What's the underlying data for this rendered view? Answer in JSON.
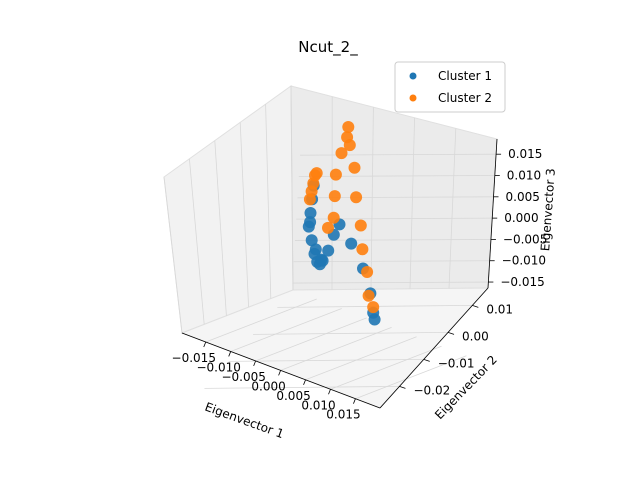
{
  "chart_data": {
    "type": "scatter",
    "projection": "3d",
    "title": "Ncut_2_",
    "xlabel": "Eigenvector 1",
    "ylabel": "Eigenvector 2",
    "zlabel": "Eigenvector 3",
    "xticks": [
      "−0.015",
      "−0.010",
      "−0.005",
      "0.000",
      "0.005",
      "0.010",
      "0.015"
    ],
    "yticks": [
      "−0.02",
      "−0.01",
      "0.00",
      "0.01"
    ],
    "zticks": [
      "−0.015",
      "−0.010",
      "−0.005",
      "0.000",
      "0.005",
      "0.010",
      "0.015"
    ],
    "grid": true,
    "legend_position": "upper-right",
    "series": [
      {
        "name": "Cluster 1",
        "color": "#1f77b4",
        "points": [
          [
            -0.015,
            0.011,
            0.002
          ],
          [
            -0.013,
            0.01,
            0.0
          ],
          [
            -0.011,
            0.009,
            -0.002
          ],
          [
            -0.009,
            0.008,
            -0.004
          ],
          [
            -0.007,
            0.006,
            -0.006
          ],
          [
            -0.005,
            0.004,
            -0.008
          ],
          [
            -0.003,
            0.002,
            -0.009
          ],
          [
            -0.001,
            0.0,
            -0.009
          ],
          [
            0.001,
            -0.002,
            -0.008
          ],
          [
            0.002,
            -0.004,
            -0.006
          ],
          [
            0.003,
            -0.006,
            -0.003
          ],
          [
            0.004,
            -0.008,
            -0.001
          ],
          [
            0.006,
            -0.012,
            -0.004
          ],
          [
            0.008,
            -0.016,
            -0.008
          ],
          [
            0.01,
            -0.019,
            -0.012
          ],
          [
            0.012,
            -0.021,
            -0.015
          ],
          [
            0.013,
            -0.022,
            -0.016
          ],
          [
            -0.008,
            0.007,
            -0.003
          ],
          [
            -0.004,
            0.003,
            -0.007
          ],
          [
            0.0,
            -0.001,
            -0.008
          ]
        ]
      },
      {
        "name": "Cluster 2",
        "color": "#ff7f0e",
        "points": [
          [
            -0.016,
            0.011,
            0.004
          ],
          [
            -0.014,
            0.01,
            0.004
          ],
          [
            -0.012,
            0.009,
            0.003
          ],
          [
            -0.01,
            0.008,
            0.002
          ],
          [
            -0.008,
            0.007,
            0.001
          ],
          [
            0.003,
            -0.006,
            0.0
          ],
          [
            0.004,
            -0.007,
            0.004
          ],
          [
            0.005,
            -0.008,
            0.008
          ],
          [
            0.006,
            -0.01,
            0.012
          ],
          [
            0.007,
            -0.012,
            0.015
          ],
          [
            0.008,
            -0.013,
            0.017
          ],
          [
            0.009,
            -0.014,
            0.014
          ],
          [
            0.009,
            -0.015,
            0.01
          ],
          [
            0.01,
            -0.016,
            0.005
          ],
          [
            0.01,
            -0.017,
            0.0
          ],
          [
            0.011,
            -0.018,
            -0.004
          ],
          [
            0.011,
            -0.019,
            -0.008
          ],
          [
            0.012,
            -0.02,
            -0.012
          ],
          [
            0.012,
            -0.021,
            -0.014
          ],
          [
            0.002,
            -0.004,
            -0.002
          ]
        ]
      }
    ]
  }
}
